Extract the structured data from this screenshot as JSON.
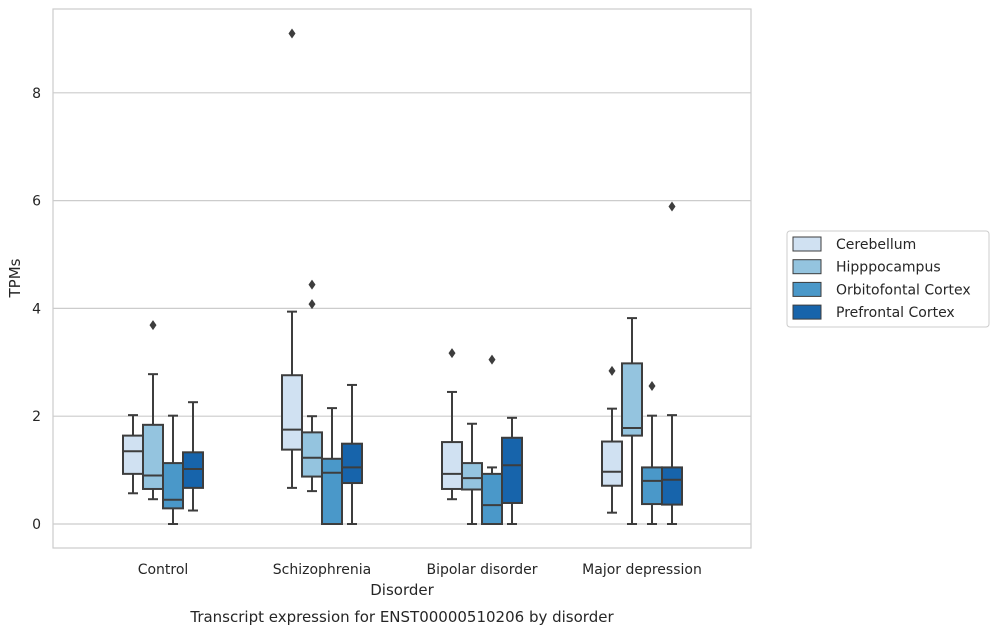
{
  "chart_data": {
    "type": "box",
    "title": "",
    "caption": "Transcript expression for ENST00000510206 by disorder",
    "xlabel": "Disorder",
    "ylabel": "TPMs",
    "ylim": [
      -0.45,
      9.7
    ],
    "yticks": [
      "0",
      "2",
      "4",
      "6",
      "8"
    ],
    "grid": true,
    "legend_position": "right",
    "categories": [
      "Control",
      "Schizophrenia",
      "Bipolar disorder",
      "Major depression"
    ],
    "series": [
      {
        "name": "Cerebellum",
        "color": "#d0e1f2",
        "boxes": [
          {
            "whislo": 0.57,
            "q1": 0.93,
            "med": 1.35,
            "q3": 1.64,
            "whishi": 2.02,
            "fliers": []
          },
          {
            "whislo": 0.67,
            "q1": 1.38,
            "med": 1.75,
            "q3": 2.76,
            "whishi": 3.94,
            "fliers": [
              9.1
            ]
          },
          {
            "whislo": 0.46,
            "q1": 0.65,
            "med": 0.93,
            "q3": 1.52,
            "whishi": 2.45,
            "fliers": [
              3.17
            ]
          },
          {
            "whislo": 0.21,
            "q1": 0.71,
            "med": 0.97,
            "q3": 1.53,
            "whishi": 2.14,
            "fliers": [
              2.84
            ]
          }
        ]
      },
      {
        "name": "Hipppocampus",
        "color": "#94c4df",
        "boxes": [
          {
            "whislo": 0.46,
            "q1": 0.65,
            "med": 0.9,
            "q3": 1.84,
            "whishi": 2.78,
            "fliers": [
              3.69
            ]
          },
          {
            "whislo": 0.61,
            "q1": 0.88,
            "med": 1.23,
            "q3": 1.7,
            "whishi": 2.0,
            "fliers": [
              4.08,
              4.44
            ]
          },
          {
            "whislo": 0.0,
            "q1": 0.64,
            "med": 0.85,
            "q3": 1.13,
            "whishi": 1.86,
            "fliers": []
          },
          {
            "whislo": 0.0,
            "q1": 1.64,
            "med": 1.78,
            "q3": 2.98,
            "whishi": 3.82,
            "fliers": []
          }
        ]
      },
      {
        "name": "Orbitofontal Cortex",
        "color": "#4a98c9",
        "boxes": [
          {
            "whislo": 0.0,
            "q1": 0.29,
            "med": 0.45,
            "q3": 1.13,
            "whishi": 2.01,
            "fliers": []
          },
          {
            "whislo": 0.0,
            "q1": 0.0,
            "med": 0.95,
            "q3": 1.21,
            "whishi": 2.15,
            "fliers": []
          },
          {
            "whislo": 0.0,
            "q1": 0.0,
            "med": 0.35,
            "q3": 0.93,
            "whishi": 1.05,
            "fliers": [
              3.05
            ]
          },
          {
            "whislo": 0.0,
            "q1": 0.37,
            "med": 0.8,
            "q3": 1.05,
            "whishi": 2.01,
            "fliers": [
              2.56
            ]
          }
        ]
      },
      {
        "name": "Prefrontal Cortex",
        "color": "#1764ab",
        "boxes": [
          {
            "whislo": 0.25,
            "q1": 0.67,
            "med": 1.02,
            "q3": 1.33,
            "whishi": 2.26,
            "fliers": []
          },
          {
            "whislo": 0.0,
            "q1": 0.76,
            "med": 1.05,
            "q3": 1.49,
            "whishi": 2.58,
            "fliers": []
          },
          {
            "whislo": 0.0,
            "q1": 0.39,
            "med": 1.09,
            "q3": 1.6,
            "whishi": 1.97,
            "fliers": []
          },
          {
            "whislo": 0.0,
            "q1": 0.36,
            "med": 0.82,
            "q3": 1.05,
            "whishi": 2.02,
            "fliers": [
              5.89
            ]
          }
        ]
      }
    ],
    "style": {
      "line_color": "#3d3d3d",
      "grid_color": "#cccccc",
      "frame_color": "#cccccc"
    }
  }
}
